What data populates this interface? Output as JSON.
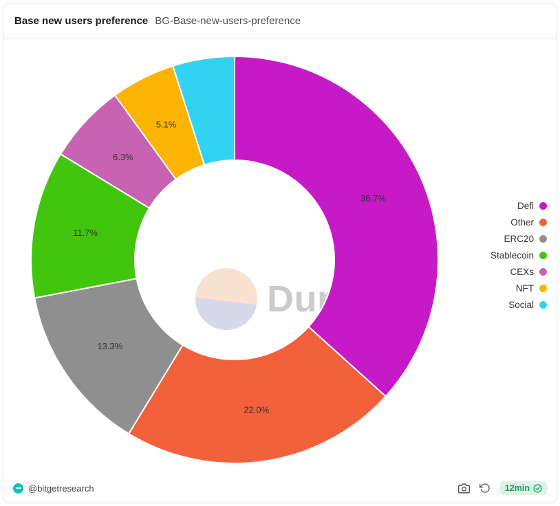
{
  "card": {
    "title": "Base new users preference",
    "subtitle": "BG-Base-new-users-preference"
  },
  "watermark": {
    "text": "Dune"
  },
  "footer": {
    "author": "@bitgetresearch",
    "freshness": "12min"
  },
  "colors": {
    "accent_green": "#0fa05f",
    "author_brand": "#00c6c2",
    "watermark_gray": "#cbcbcb"
  },
  "chart_data": {
    "type": "pie",
    "title": "Base new users preference",
    "donut": true,
    "inner_radius_ratio": 0.49,
    "start_angle_deg": 0,
    "direction": "clockwise",
    "legend_position": "right",
    "grid": false,
    "segments": [
      {
        "label": "Defi",
        "value": 36.7,
        "display": "36.7%",
        "color": "#c51ac5",
        "label_visible": true
      },
      {
        "label": "Other",
        "value": 22.0,
        "display": "22.0%",
        "color": "#f2603c",
        "label_visible": true
      },
      {
        "label": "ERC20",
        "value": 13.3,
        "display": "13.3%",
        "color": "#8f8f8f",
        "label_visible": true
      },
      {
        "label": "Stablecoin",
        "value": 11.7,
        "display": "11.7%",
        "color": "#42c60d",
        "label_visible": true
      },
      {
        "label": "CEXs",
        "value": 6.3,
        "display": "6.3%",
        "color": "#c763b2",
        "label_visible": true
      },
      {
        "label": "NFT",
        "value": 5.1,
        "display": "5.1%",
        "color": "#fcb404",
        "label_visible": true
      },
      {
        "label": "Social",
        "value": 4.9,
        "display": "",
        "color": "#32d3f0",
        "label_visible": false
      }
    ]
  }
}
